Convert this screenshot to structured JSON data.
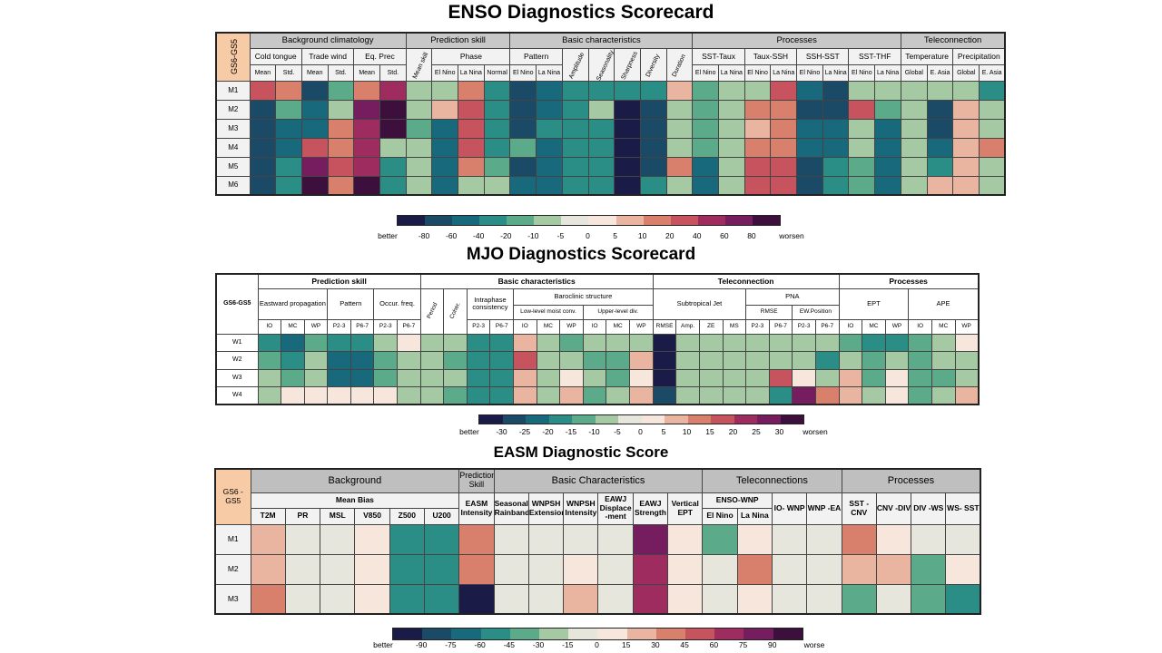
{
  "chart_data": [
    {
      "type": "heatmap",
      "title": "ENSO Diagnostics Scorecard",
      "corner_label": "GS6-GS5",
      "groups": [
        {
          "label": "Background climatology",
          "span": 6
        },
        {
          "label": "Prediction skill",
          "span": 4
        },
        {
          "label": "Basic characteristics",
          "span": 7
        },
        {
          "label": "Processes",
          "span": 8
        },
        {
          "label": "Teleconnection",
          "span": 4
        }
      ],
      "subgroups": [
        {
          "label": "Cold tongue",
          "span": 2
        },
        {
          "label": "Trade wind",
          "span": 2
        },
        {
          "label": "Eq. Prec",
          "span": 2
        },
        {
          "label": "Mean skill",
          "span": 1,
          "rows": 2,
          "vertical": true
        },
        {
          "label": "Phase",
          "span": 3
        },
        {
          "label": "Pattern",
          "span": 2
        },
        {
          "label": "Amplitude",
          "span": 1,
          "rows": 2,
          "vertical": true
        },
        {
          "label": "Seasonality",
          "span": 1,
          "rows": 2,
          "vertical": true
        },
        {
          "label": "Sharpness",
          "span": 1,
          "rows": 2,
          "vertical": true
        },
        {
          "label": "Diversity",
          "span": 1,
          "rows": 2,
          "vertical": true
        },
        {
          "label": "Duration",
          "span": 1,
          "rows": 2,
          "vertical": true
        },
        {
          "label": "SST-Taux",
          "span": 2
        },
        {
          "label": "Taux-SSH",
          "span": 2
        },
        {
          "label": "SSH-SST",
          "span": 2
        },
        {
          "label": "SST-THF",
          "span": 2
        },
        {
          "label": "Temperature",
          "span": 2
        },
        {
          "label": "Precipitation",
          "span": 2
        }
      ],
      "columns": [
        "Mean",
        "Std.",
        "Mean",
        "Std.",
        "Mean",
        "Std.",
        "",
        "El Nino",
        "La Nina",
        "Normal",
        "El Nino",
        "La Nina",
        "",
        "",
        "",
        "",
        "",
        "El Nino",
        "La Nina",
        "El Nino",
        "La Nina",
        "El Nino",
        "La Nina",
        "El Nino",
        "La Nina",
        "Global",
        "E. Asia",
        "Global",
        "E. Asia"
      ],
      "rows": [
        "M1",
        "M2",
        "M3",
        "M4",
        "M5",
        "M6"
      ],
      "values": [
        [
          40,
          20,
          -60,
          -15,
          20,
          60,
          -5,
          -5,
          20,
          -20,
          -60,
          -40,
          -20,
          -20,
          -20,
          -20,
          10,
          -15,
          -5,
          -5,
          30,
          -40,
          -60,
          -5,
          -5,
          -5,
          -5,
          -5,
          -20
        ],
        [
          -60,
          -15,
          -40,
          -5,
          80,
          90,
          -5,
          10,
          40,
          -20,
          -70,
          -40,
          -20,
          -5,
          -90,
          -60,
          -5,
          -15,
          -5,
          20,
          20,
          -60,
          -60,
          30,
          -10,
          -5,
          -60,
          10,
          -5
        ],
        [
          -70,
          -40,
          -50,
          15,
          60,
          90,
          -15,
          -40,
          40,
          -20,
          -60,
          -20,
          -20,
          -20,
          -80,
          -60,
          -5,
          -15,
          -5,
          10,
          15,
          -50,
          -40,
          -5,
          -40,
          -5,
          -60,
          10,
          -5
        ],
        [
          -70,
          -50,
          40,
          20,
          60,
          -5,
          -5,
          -50,
          30,
          -20,
          -15,
          -40,
          -20,
          -20,
          -90,
          -60,
          -5,
          -15,
          -5,
          20,
          15,
          -40,
          -40,
          -5,
          -40,
          -5,
          -50,
          10,
          15
        ],
        [
          -70,
          -30,
          80,
          30,
          60,
          -30,
          -5,
          -50,
          15,
          -15,
          -60,
          -50,
          -20,
          -20,
          -90,
          -70,
          15,
          -40,
          -5,
          30,
          30,
          -60,
          -30,
          -15,
          -40,
          -5,
          -30,
          10,
          -5
        ],
        [
          -60,
          -30,
          90,
          15,
          90,
          -30,
          -5,
          -50,
          -5,
          -5,
          -50,
          -50,
          -20,
          -20,
          -90,
          -30,
          -5,
          -40,
          -5,
          30,
          40,
          -60,
          -20,
          -15,
          -40,
          -5,
          10,
          10,
          -5
        ]
      ],
      "colorbar": {
        "ticks": [
          "better",
          "-80",
          "-60",
          "-40",
          "-20",
          "-10",
          "-5",
          "0",
          "5",
          "10",
          "20",
          "40",
          "60",
          "80",
          "worsen"
        ],
        "colors": [
          "#1a1c47",
          "#1b4a66",
          "#18697b",
          "#2a8e86",
          "#5bab8b",
          "#a5c9a2",
          "#e6e6dc",
          "#f7e6dc",
          "#e9b4a0",
          "#d9806c",
          "#c6535d",
          "#9e2c5f",
          "#751d5e",
          "#3c0f3d"
        ]
      }
    },
    {
      "type": "heatmap",
      "title": "MJO Diagnostics Scorecard",
      "corner_label": "GS6-GS5",
      "groups": [
        {
          "label": "Prediction skill",
          "span": 7
        },
        {
          "label": "Basic characteristics",
          "span": 10
        },
        {
          "label": "Teleconnection",
          "span": 8
        },
        {
          "label": "Processes",
          "span": 6
        }
      ],
      "subgroups": [
        {
          "label": "Eastward propagation",
          "span": 3
        },
        {
          "label": "Pattern",
          "span": 2
        },
        {
          "label": "Occur. freq.",
          "span": 2
        },
        {
          "label": "Period",
          "span": 1,
          "vertical": true
        },
        {
          "label": "Coher.",
          "span": 1,
          "vertical": true
        },
        {
          "label": "Intraphase consistency",
          "span": 2
        },
        {
          "label": "Baroclinic structure",
          "span": 6
        },
        {
          "label": "Subtropical Jet",
          "span": 4
        },
        {
          "label": "PNA",
          "span": 4
        },
        {
          "label": "EPT",
          "span": 3
        },
        {
          "label": "APE",
          "span": 3
        }
      ],
      "subsubgroups": [
        {
          "label": "Low-level moist conv.",
          "span": 3
        },
        {
          "label": "Upper-level div.",
          "span": 3
        },
        {
          "label": "RMSE",
          "span": 2
        },
        {
          "label": "EW.Position",
          "span": 2
        }
      ],
      "columns": [
        "IO",
        "MC",
        "WP",
        "P2-3",
        "P6-7",
        "P2-3",
        "P6-7",
        "",
        "",
        "P2-3",
        "P6-7",
        "IO",
        "MC",
        "WP",
        "IO",
        "MC",
        "WP",
        "RMSE",
        "Amp.",
        "ZE",
        "MS",
        "P2-3",
        "P6-7",
        "P2-3",
        "P6-7",
        "IO",
        "MC",
        "WP",
        "IO",
        "MC",
        "WP"
      ],
      "rows": [
        "W1",
        "W2",
        "W3",
        "W4"
      ],
      "values": [
        [
          -15,
          -20,
          -10,
          -15,
          -15,
          -5,
          5,
          -5,
          -5,
          -15,
          -15,
          10,
          -5,
          -10,
          -5,
          -5,
          -5,
          -30,
          -5,
          -5,
          -5,
          -5,
          -5,
          -5,
          -5,
          -10,
          -15,
          -15,
          -10,
          -5,
          5
        ],
        [
          -12,
          -15,
          -5,
          -20,
          -20,
          -10,
          -5,
          -5,
          -10,
          -15,
          -15,
          20,
          -5,
          -5,
          -10,
          -10,
          10,
          -30,
          -5,
          -5,
          -5,
          -5,
          -5,
          -5,
          -15,
          -5,
          -10,
          -5,
          -10,
          -5,
          -5
        ],
        [
          -5,
          -10,
          -5,
          -20,
          -20,
          -10,
          -5,
          -5,
          -5,
          -15,
          -15,
          10,
          -5,
          5,
          -5,
          -10,
          5,
          -30,
          -5,
          -5,
          -5,
          -5,
          20,
          5,
          -5,
          10,
          -10,
          5,
          -10,
          -10,
          -5
        ],
        [
          -5,
          5,
          5,
          5,
          5,
          5,
          -5,
          -5,
          -10,
          -15,
          -15,
          10,
          -5,
          10,
          -10,
          -5,
          10,
          -25,
          -5,
          -5,
          -5,
          -5,
          -15,
          30,
          15,
          10,
          -5,
          5,
          -10,
          -5,
          10
        ]
      ],
      "colorbar": {
        "ticks": [
          "better",
          "-30",
          "-25",
          "-20",
          "-15",
          "-10",
          "-5",
          "0",
          "5",
          "10",
          "15",
          "20",
          "25",
          "30",
          "worsen"
        ],
        "colors": [
          "#1a1c47",
          "#1b4a66",
          "#18697b",
          "#2a8e86",
          "#5bab8b",
          "#a5c9a2",
          "#e6e6dc",
          "#f7e6dc",
          "#e9b4a0",
          "#d9806c",
          "#c6535d",
          "#9e2c5f",
          "#751d5e",
          "#3c0f3d"
        ]
      }
    },
    {
      "type": "heatmap",
      "title": "EASM Diagnostic Score",
      "corner_label": "GS6 -GS5",
      "groups": [
        {
          "label": "Background",
          "span": 6
        },
        {
          "label": "Prediction Skill",
          "span": 1
        },
        {
          "label": "Basic Characteristics",
          "span": 6
        },
        {
          "label": "Teleconnections",
          "span": 4
        },
        {
          "label": "Processes",
          "span": 4
        }
      ],
      "subgroups": [
        {
          "label": "Mean Bias",
          "span": 6
        },
        {
          "label": "EASM Intensity",
          "span": 1,
          "rows": 2
        },
        {
          "label": "Seasonal Rainband",
          "span": 1,
          "rows": 2
        },
        {
          "label": "WNPSH Extension",
          "span": 1,
          "rows": 2
        },
        {
          "label": "WNPSH Intensity",
          "span": 1,
          "rows": 2
        },
        {
          "label": "EAWJ Displace -ment",
          "span": 1,
          "rows": 2
        },
        {
          "label": "EAWJ Strength",
          "span": 1,
          "rows": 2
        },
        {
          "label": "Vertical EPT",
          "span": 1,
          "rows": 2
        },
        {
          "label": "ENSO-WNP",
          "span": 2
        },
        {
          "label": "IO- WNP",
          "span": 1,
          "rows": 2
        },
        {
          "label": "WNP -EA",
          "span": 1,
          "rows": 2
        },
        {
          "label": "SST -CNV",
          "span": 1,
          "rows": 2
        },
        {
          "label": "CNV -DIV",
          "span": 1,
          "rows": 2
        },
        {
          "label": "DIV -WS",
          "span": 1,
          "rows": 2
        },
        {
          "label": "WS- SST",
          "span": 1,
          "rows": 2
        }
      ],
      "columns": [
        "T2M",
        "PR",
        "MSL",
        "V850",
        "Z500",
        "U200",
        "",
        "",
        "",
        "",
        "",
        "",
        "",
        "El Nino",
        "La Nina",
        "",
        "",
        "",
        "",
        "",
        ""
      ],
      "rows": [
        "M1",
        "M2",
        "M3"
      ],
      "values": [
        [
          30,
          -10,
          -10,
          10,
          -45,
          -45,
          45,
          -10,
          -10,
          -10,
          -10,
          85,
          15,
          -30,
          10,
          -10,
          -10,
          45,
          10,
          -10,
          -10
        ],
        [
          30,
          -10,
          -10,
          10,
          -45,
          -45,
          45,
          -10,
          -10,
          10,
          -10,
          75,
          15,
          -10,
          45,
          -10,
          -10,
          30,
          30,
          -30,
          10
        ],
        [
          45,
          -10,
          -10,
          10,
          -45,
          -45,
          -95,
          -10,
          -10,
          30,
          -10,
          75,
          15,
          -10,
          10,
          -10,
          -10,
          -30,
          -10,
          -30,
          -45
        ]
      ],
      "colorbar": {
        "ticks": [
          "better",
          "-90",
          "-75",
          "-60",
          "-45",
          "-30",
          "-15",
          "0",
          "15",
          "30",
          "45",
          "60",
          "75",
          "90",
          "worse"
        ],
        "colors": [
          "#1a1c47",
          "#1b4a66",
          "#18697b",
          "#2a8e86",
          "#5bab8b",
          "#a5c9a2",
          "#e6e6dc",
          "#f7e6dc",
          "#e9b4a0",
          "#d9806c",
          "#c6535d",
          "#9e2c5f",
          "#751d5e",
          "#3c0f3d"
        ]
      }
    }
  ]
}
